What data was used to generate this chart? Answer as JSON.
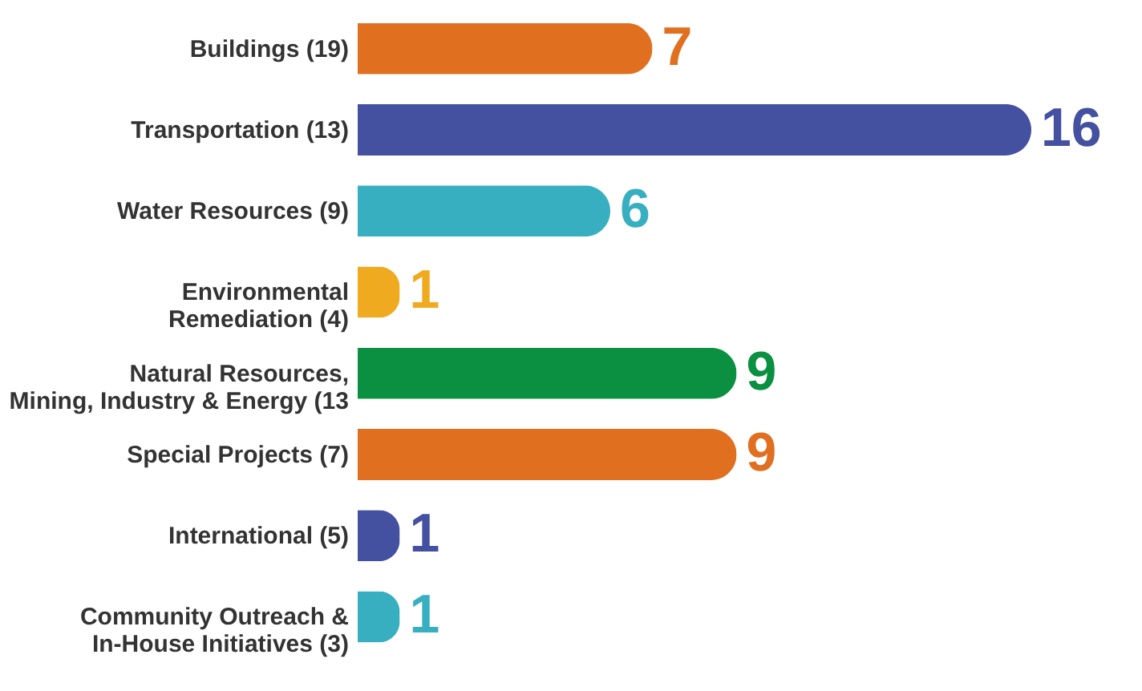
{
  "chart_data": {
    "type": "bar",
    "orientation": "horizontal",
    "data_labels": true,
    "categories": [
      "Buildings (19)",
      "Transportation (13)",
      "Water Resources (9)",
      "Environmental\nRemediation (4)",
      "Natural Resources,\nMining, Industry & Energy (13",
      "Special Projects (7)",
      "International (5)",
      "Community Outreach &\nIn-House Initiatives (3)"
    ],
    "values": [
      7,
      16,
      6,
      1,
      9,
      9,
      1,
      1
    ],
    "colors": [
      "#e07020",
      "#4450a0",
      "#38afc0",
      "#f0aa20",
      "#0a9040",
      "#e07020",
      "#4450a0",
      "#38afc0"
    ]
  }
}
